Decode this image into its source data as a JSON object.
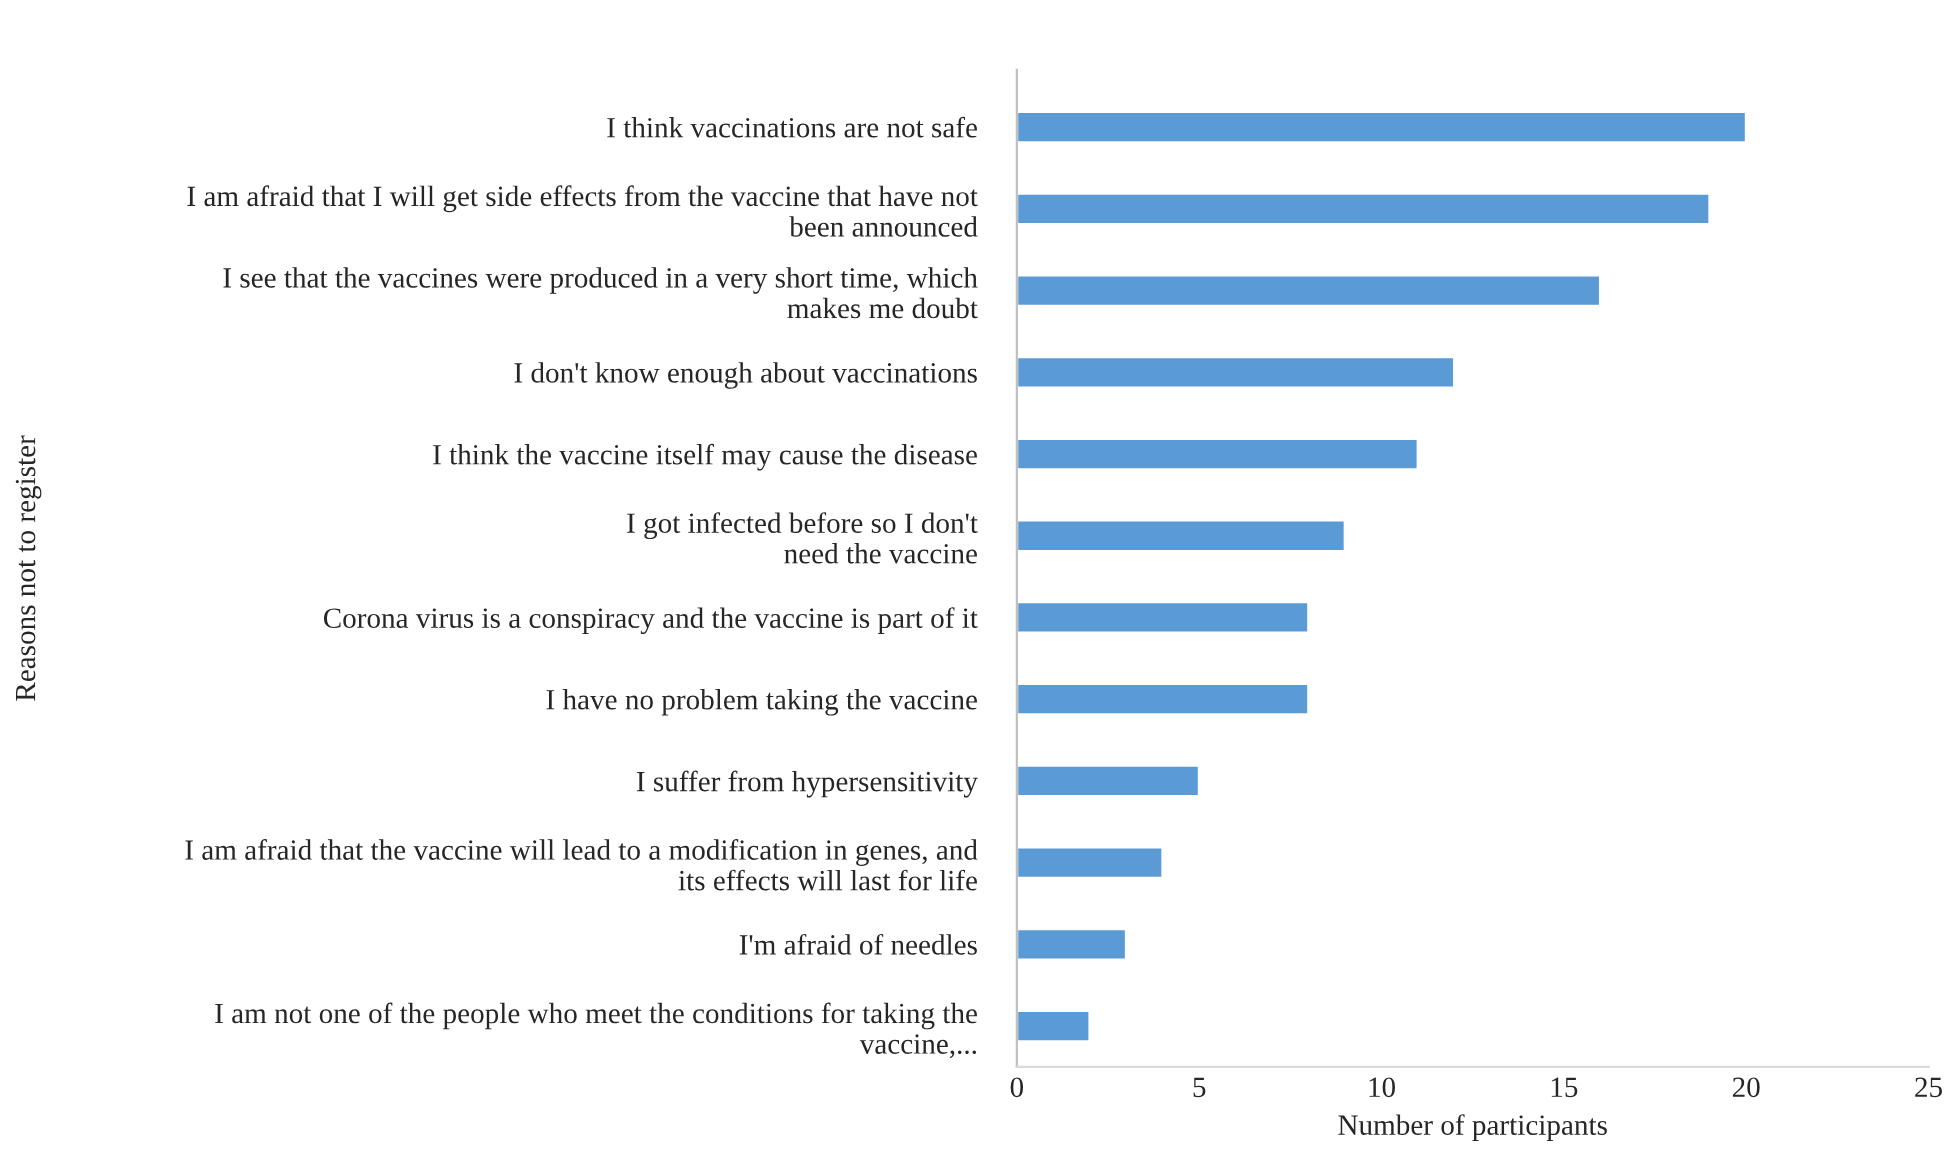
{
  "chart_data": {
    "type": "bar",
    "orientation": "horizontal",
    "xlabel": "Number of participants",
    "ylabel": "Reasons not to register",
    "categories": [
      "I think vaccinations are not safe",
      "I am afraid that I will get side effects from the vaccine that have not\nbeen announced",
      "I see that the vaccines were produced in a very short time, which\nmakes me doubt",
      "I don't know enough about vaccinations",
      "I think the vaccine itself may cause the disease",
      "I got infected before so I don't\nneed the vaccine",
      "Corona virus is a conspiracy and the vaccine is part of it",
      "I have no problem taking the vaccine",
      "I suffer from hypersensitivity",
      "I am afraid that the vaccine will lead to a modification in genes, and\nits effects will last for life",
      "I'm afraid of needles",
      "I am not one of the people who meet the conditions for taking the\nvaccine,..."
    ],
    "values": [
      20,
      19,
      16,
      12,
      11,
      9,
      8,
      8,
      5,
      4,
      3,
      2
    ],
    "color": "#5b9bd5",
    "xlim": [
      0,
      25
    ],
    "xticks": [
      0,
      5,
      10,
      15,
      20,
      25
    ],
    "grid": false,
    "legend": false
  }
}
